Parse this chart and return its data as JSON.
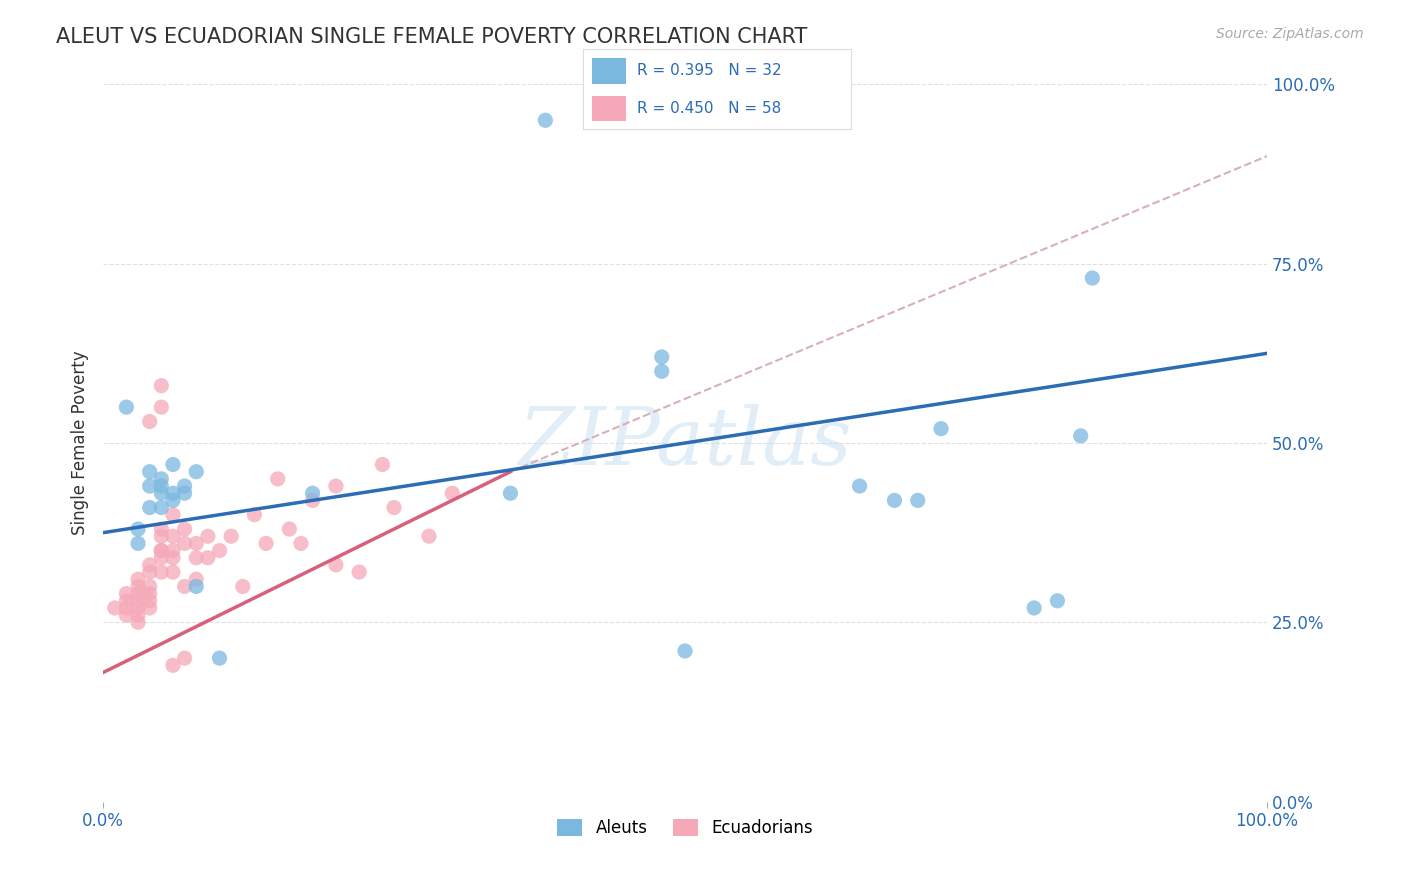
{
  "title": "ALEUT VS ECUADORIAN SINGLE FEMALE POVERTY CORRELATION CHART",
  "source_text": "Source: ZipAtlas.com",
  "ylabel": "Single Female Poverty",
  "watermark": "ZIPatlas",
  "xlim": [
    0.0,
    1.0
  ],
  "ylim": [
    0.0,
    1.0
  ],
  "aleut_R": 0.395,
  "aleut_N": 32,
  "ecuadorian_R": 0.45,
  "ecuadorian_N": 58,
  "aleut_color": "#7ab8e0",
  "ecuadorian_color": "#f5a8b8",
  "aleut_line_color": "#2b6cb5",
  "ecuadorian_line_color": "#d9607a",
  "ref_line_color": "#d9b0b8",
  "aleut_points": [
    [
      0.02,
      0.55
    ],
    [
      0.03,
      0.38
    ],
    [
      0.03,
      0.36
    ],
    [
      0.04,
      0.46
    ],
    [
      0.04,
      0.44
    ],
    [
      0.04,
      0.41
    ],
    [
      0.05,
      0.45
    ],
    [
      0.05,
      0.44
    ],
    [
      0.05,
      0.43
    ],
    [
      0.05,
      0.41
    ],
    [
      0.06,
      0.47
    ],
    [
      0.06,
      0.43
    ],
    [
      0.06,
      0.42
    ],
    [
      0.07,
      0.44
    ],
    [
      0.07,
      0.43
    ],
    [
      0.08,
      0.46
    ],
    [
      0.08,
      0.3
    ],
    [
      0.1,
      0.2
    ],
    [
      0.18,
      0.43
    ],
    [
      0.35,
      0.43
    ],
    [
      0.48,
      0.6
    ],
    [
      0.48,
      0.62
    ],
    [
      0.38,
      0.95
    ],
    [
      0.65,
      0.44
    ],
    [
      0.68,
      0.42
    ],
    [
      0.7,
      0.42
    ],
    [
      0.72,
      0.52
    ],
    [
      0.8,
      0.27
    ],
    [
      0.82,
      0.28
    ],
    [
      0.84,
      0.51
    ],
    [
      0.85,
      0.73
    ],
    [
      0.5,
      0.21
    ]
  ],
  "ecuadorian_points": [
    [
      0.01,
      0.27
    ],
    [
      0.02,
      0.28
    ],
    [
      0.02,
      0.29
    ],
    [
      0.02,
      0.27
    ],
    [
      0.02,
      0.26
    ],
    [
      0.03,
      0.29
    ],
    [
      0.03,
      0.28
    ],
    [
      0.03,
      0.3
    ],
    [
      0.03,
      0.27
    ],
    [
      0.03,
      0.26
    ],
    [
      0.03,
      0.25
    ],
    [
      0.03,
      0.31
    ],
    [
      0.04,
      0.28
    ],
    [
      0.04,
      0.29
    ],
    [
      0.04,
      0.32
    ],
    [
      0.04,
      0.3
    ],
    [
      0.04,
      0.33
    ],
    [
      0.04,
      0.27
    ],
    [
      0.05,
      0.35
    ],
    [
      0.05,
      0.38
    ],
    [
      0.05,
      0.37
    ],
    [
      0.05,
      0.35
    ],
    [
      0.05,
      0.34
    ],
    [
      0.05,
      0.32
    ],
    [
      0.06,
      0.32
    ],
    [
      0.06,
      0.34
    ],
    [
      0.06,
      0.37
    ],
    [
      0.06,
      0.35
    ],
    [
      0.06,
      0.4
    ],
    [
      0.07,
      0.36
    ],
    [
      0.07,
      0.38
    ],
    [
      0.07,
      0.3
    ],
    [
      0.08,
      0.36
    ],
    [
      0.08,
      0.34
    ],
    [
      0.08,
      0.31
    ],
    [
      0.09,
      0.37
    ],
    [
      0.09,
      0.34
    ],
    [
      0.1,
      0.35
    ],
    [
      0.11,
      0.37
    ],
    [
      0.12,
      0.3
    ],
    [
      0.13,
      0.4
    ],
    [
      0.14,
      0.36
    ],
    [
      0.15,
      0.45
    ],
    [
      0.16,
      0.38
    ],
    [
      0.17,
      0.36
    ],
    [
      0.18,
      0.42
    ],
    [
      0.2,
      0.44
    ],
    [
      0.2,
      0.33
    ],
    [
      0.22,
      0.32
    ],
    [
      0.24,
      0.47
    ],
    [
      0.25,
      0.41
    ],
    [
      0.28,
      0.37
    ],
    [
      0.3,
      0.43
    ],
    [
      0.04,
      0.53
    ],
    [
      0.05,
      0.58
    ],
    [
      0.05,
      0.55
    ],
    [
      0.06,
      0.19
    ],
    [
      0.07,
      0.2
    ]
  ],
  "aleut_trend": [
    0.0,
    1.0,
    0.375,
    0.625
  ],
  "ecuadorian_trend_solid": [
    0.0,
    0.35,
    0.18,
    0.46
  ],
  "ecuadorian_trend_dashed": [
    0.35,
    1.0,
    0.46,
    0.9
  ],
  "ytick_labels": [
    "0.0%",
    "25.0%",
    "50.0%",
    "75.0%",
    "100.0%"
  ],
  "ytick_values": [
    0.0,
    0.25,
    0.5,
    0.75,
    1.0
  ],
  "xtick_labels_bottom": [
    "0.0%",
    "100.0%"
  ],
  "xtick_values_bottom": [
    0.0,
    1.0
  ],
  "background_color": "#ffffff",
  "grid_color": "#e0e0e0",
  "title_color": "#333333",
  "label_color": "#333333",
  "tick_color": "#2b6cb5",
  "legend_color": "#2b6cb5"
}
